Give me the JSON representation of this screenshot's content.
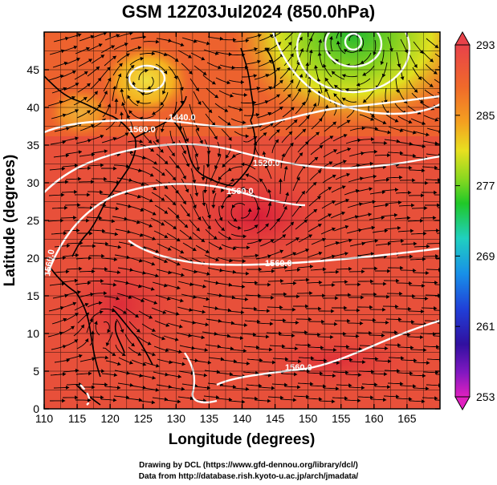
{
  "title": "GSM 12Z03Jul2024 (850.0hPa)",
  "x_axis": {
    "label": "Longitude (degrees)",
    "ticks": [
      "110",
      "115",
      "120",
      "125",
      "130",
      "135",
      "140",
      "145",
      "150",
      "155",
      "160",
      "165"
    ]
  },
  "y_axis": {
    "label": "Latitude  (degrees)",
    "ticks": [
      "0",
      "5",
      "10",
      "15",
      "20",
      "25",
      "30",
      "35",
      "40",
      "45"
    ]
  },
  "colorbar": {
    "labels": [
      "293",
      "285",
      "277",
      "269",
      "261",
      "253"
    ],
    "colors": [
      "#e8424a",
      "#f06a2a",
      "#f4a020",
      "#e8e020",
      "#8ad820",
      "#20c828",
      "#20d0c0",
      "#1890e8",
      "#2040d8",
      "#3010a0",
      "#8018c0",
      "#e020c0"
    ]
  },
  "contour_labels": [
    "1440.0",
    "1520.0",
    "1560.0",
    "1560.0",
    "1560.0",
    "1560.0",
    "1560.0"
  ],
  "credits": {
    "line1": "Drawing by DCL (https://www.gfd-dennou.org/library/dcl/)",
    "line2": "Data from http://database.rish.kyoto-u.ac.jp/arch/jmadata/"
  },
  "chart_data": {
    "type": "heatmap",
    "title": "GSM 12Z03Jul2024 (850.0hPa)",
    "xlabel": "Longitude (degrees)",
    "ylabel": "Latitude  (degrees)",
    "xlim": [
      110,
      170
    ],
    "ylim": [
      0,
      50
    ],
    "colorbar_range": [
      253,
      293
    ],
    "colorbar_ticks": [
      293,
      285,
      277,
      269,
      261,
      253
    ]
  }
}
